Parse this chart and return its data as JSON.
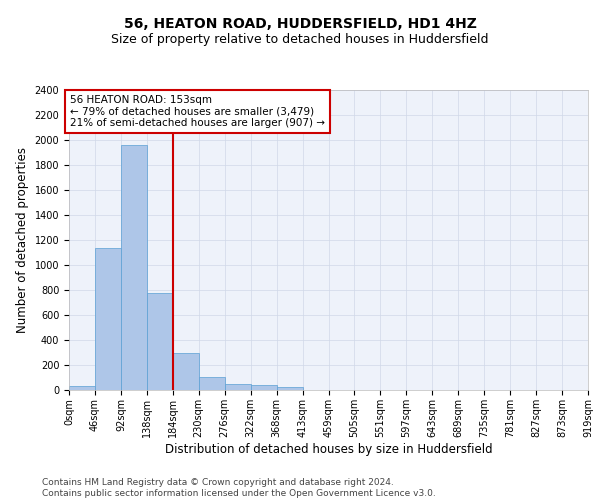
{
  "title": "56, HEATON ROAD, HUDDERSFIELD, HD1 4HZ",
  "subtitle": "Size of property relative to detached houses in Huddersfield",
  "xlabel": "Distribution of detached houses by size in Huddersfield",
  "ylabel": "Number of detached properties",
  "bin_labels": [
    "0sqm",
    "46sqm",
    "92sqm",
    "138sqm",
    "184sqm",
    "230sqm",
    "276sqm",
    "322sqm",
    "368sqm",
    "413sqm",
    "459sqm",
    "505sqm",
    "551sqm",
    "597sqm",
    "643sqm",
    "689sqm",
    "735sqm",
    "781sqm",
    "827sqm",
    "873sqm",
    "919sqm"
  ],
  "bar_values": [
    35,
    1140,
    1960,
    775,
    300,
    105,
    47,
    38,
    25,
    0,
    0,
    0,
    0,
    0,
    0,
    0,
    0,
    0,
    0,
    0
  ],
  "bar_color": "#aec6e8",
  "bar_edge_color": "#5a9fd4",
  "ylim": [
    0,
    2400
  ],
  "yticks": [
    0,
    200,
    400,
    600,
    800,
    1000,
    1200,
    1400,
    1600,
    1800,
    2000,
    2200,
    2400
  ],
  "bin_width": 46,
  "annotation_title": "56 HEATON ROAD: 153sqm",
  "annotation_line1": "← 79% of detached houses are smaller (3,479)",
  "annotation_line2": "21% of semi-detached houses are larger (907) →",
  "annotation_box_color": "#ffffff",
  "annotation_box_edge_color": "#cc0000",
  "vline_color": "#cc0000",
  "footer_line1": "Contains HM Land Registry data © Crown copyright and database right 2024.",
  "footer_line2": "Contains public sector information licensed under the Open Government Licence v3.0.",
  "bg_color": "#eef2fa",
  "grid_color": "#d0d8e8",
  "title_fontsize": 10,
  "subtitle_fontsize": 9,
  "axis_label_fontsize": 8.5,
  "tick_fontsize": 7,
  "footer_fontsize": 6.5,
  "annotation_fontsize": 7.5
}
